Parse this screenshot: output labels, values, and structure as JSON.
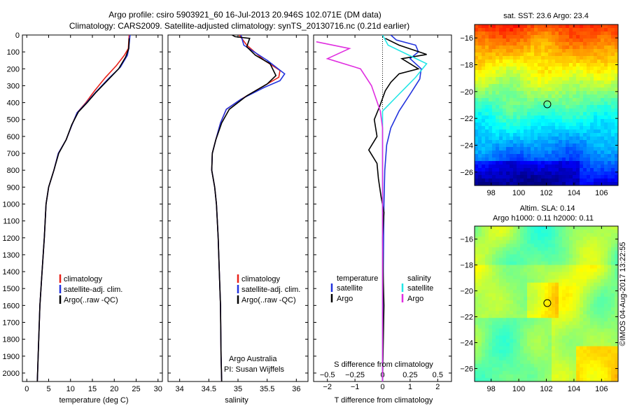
{
  "header": {
    "line1": "Argo profile: csiro 5903921_60 16-Jul-2013 20.946S 102.071E (DM data)",
    "line2": "Climatology: CARS2009. Satellite-adjusted climatology: synTS_20130716.nc (0.21d earlier)"
  },
  "side_label": "©IMOS 04-Aug-2017 13:22:55",
  "colors": {
    "climatology": "#e8221a",
    "satellite": "#2233dd",
    "argo": "#000000",
    "satellite_s": "#22e6e6",
    "argo_s": "#e02ee0"
  },
  "chart_data": [
    {
      "type": "line",
      "id": "temperature",
      "xlabel": "temperature (deg C)",
      "ylabel": "",
      "xlim": [
        -1,
        31
      ],
      "ylim": [
        2050,
        0
      ],
      "xticks": [
        0,
        5,
        10,
        15,
        20,
        25,
        30
      ],
      "yticks": [
        0,
        100,
        200,
        300,
        400,
        500,
        600,
        700,
        800,
        900,
        1000,
        1100,
        1200,
        1300,
        1400,
        1500,
        1600,
        1700,
        1800,
        1900,
        2000
      ],
      "legend": [
        "climatology",
        "satellite-adj. clim.",
        "Argo(..raw -QC)"
      ],
      "legend_position": "center-right",
      "series": [
        {
          "name": "climatology",
          "color": "#e8221a",
          "points": [
            [
              23.4,
              0
            ],
            [
              23.2,
              80
            ],
            [
              22.3,
              120
            ],
            [
              20.5,
              180
            ],
            [
              18,
              250
            ],
            [
              15.5,
              330
            ],
            [
              13.5,
              400
            ],
            [
              11.5,
              460
            ],
            [
              10.2,
              540
            ],
            [
              9,
              620
            ],
            [
              7.2,
              700
            ],
            [
              6.2,
              800
            ],
            [
              5,
              900
            ],
            [
              4.4,
              1000
            ],
            [
              4,
              1200
            ],
            [
              3.5,
              1400
            ],
            [
              3,
              1600
            ],
            [
              2.6,
              1900
            ],
            [
              2.4,
              2050
            ]
          ]
        },
        {
          "name": "satellite-adj. clim.",
          "color": "#2233dd",
          "points": [
            [
              23.6,
              0
            ],
            [
              23.3,
              80
            ],
            [
              23,
              120
            ],
            [
              21.4,
              190
            ],
            [
              18.6,
              260
            ],
            [
              15.7,
              340
            ],
            [
              13.5,
              405
            ],
            [
              11.5,
              460
            ],
            [
              10.2,
              540
            ],
            [
              9,
              620
            ],
            [
              7.2,
              700
            ],
            [
              6.2,
              800
            ],
            [
              5,
              900
            ],
            [
              4.4,
              1000
            ],
            [
              4,
              1200
            ],
            [
              3.5,
              1400
            ],
            [
              3,
              1600
            ],
            [
              2.6,
              1900
            ],
            [
              2.4,
              2050
            ]
          ]
        },
        {
          "name": "Argo(..raw -QC)",
          "color": "#000000",
          "points": [
            [
              23.4,
              20
            ],
            [
              23.3,
              80
            ],
            [
              22.6,
              130
            ],
            [
              21,
              200
            ],
            [
              18.4,
              270
            ],
            [
              15.8,
              340
            ],
            [
              13.8,
              400
            ],
            [
              11.8,
              455
            ],
            [
              10.3,
              530
            ],
            [
              9,
              620
            ],
            [
              7.3,
              700
            ],
            [
              6.2,
              800
            ],
            [
              5,
              900
            ],
            [
              4.4,
              1000
            ],
            [
              4,
              1200
            ],
            [
              3.5,
              1400
            ],
            [
              3,
              1600
            ],
            [
              2.6,
              1900
            ],
            [
              2.4,
              2050
            ]
          ]
        }
      ]
    },
    {
      "type": "line",
      "id": "salinity",
      "xlabel": "salinity",
      "ylabel": "",
      "xlim": [
        33.8,
        36.2
      ],
      "ylim": [
        2050,
        0
      ],
      "xticks": [
        34,
        34.5,
        35,
        35.5,
        36
      ],
      "legend": [
        "climatology",
        "satellite-adj. clim.",
        "Argo(..raw -QC)"
      ],
      "legend_position": "center-right",
      "annotations": [
        "Argo Australia",
        "PI: Susan Wijffels"
      ],
      "series": [
        {
          "name": "climatology",
          "color": "#e8221a",
          "points": [
            [
              35.02,
              0
            ],
            [
              35.15,
              60
            ],
            [
              35.45,
              150
            ],
            [
              35.72,
              210
            ],
            [
              35.7,
              250
            ],
            [
              35.45,
              300
            ],
            [
              35.05,
              380
            ],
            [
              34.8,
              440
            ],
            [
              34.7,
              520
            ],
            [
              34.62,
              620
            ],
            [
              34.56,
              700
            ],
            [
              34.55,
              800
            ],
            [
              34.6,
              900
            ],
            [
              34.63,
              1000
            ],
            [
              34.66,
              1200
            ],
            [
              34.68,
              1400
            ],
            [
              34.7,
              1600
            ],
            [
              34.71,
              1900
            ],
            [
              34.72,
              2050
            ]
          ]
        },
        {
          "name": "satellite-adj. clim.",
          "color": "#2233dd",
          "points": [
            [
              35.05,
              0
            ],
            [
              35.1,
              60
            ],
            [
              35.5,
              150
            ],
            [
              35.8,
              230
            ],
            [
              35.72,
              270
            ],
            [
              35.45,
              310
            ],
            [
              35.05,
              380
            ],
            [
              34.8,
              440
            ],
            [
              34.7,
              520
            ],
            [
              34.62,
              620
            ],
            [
              34.56,
              700
            ],
            [
              34.55,
              800
            ],
            [
              34.6,
              900
            ],
            [
              34.63,
              1000
            ],
            [
              34.66,
              1200
            ],
            [
              34.68,
              1400
            ],
            [
              34.7,
              1600
            ],
            [
              34.71,
              1900
            ],
            [
              34.72,
              2050
            ]
          ]
        },
        {
          "name": "Argo(..raw -QC)",
          "color": "#000000",
          "points": [
            [
              34.9,
              0
            ],
            [
              34.95,
              10
            ],
            [
              35.2,
              20
            ],
            [
              35.15,
              70
            ],
            [
              35.3,
              120
            ],
            [
              35.55,
              170
            ],
            [
              35.65,
              240
            ],
            [
              35.5,
              290
            ],
            [
              35.15,
              360
            ],
            [
              34.85,
              440
            ],
            [
              34.72,
              520
            ],
            [
              34.62,
              620
            ],
            [
              34.56,
              700
            ],
            [
              34.55,
              800
            ],
            [
              34.6,
              900
            ],
            [
              34.63,
              1000
            ],
            [
              34.66,
              1200
            ],
            [
              34.68,
              1400
            ],
            [
              34.7,
              1600
            ],
            [
              34.71,
              1900
            ],
            [
              34.72,
              2050
            ]
          ]
        }
      ]
    },
    {
      "type": "line",
      "id": "difference",
      "xlabel": "T difference from climatology",
      "xlabel_top": "S difference from climatology",
      "xlim": [
        -2.5,
        2.5
      ],
      "ylim": [
        2050,
        0
      ],
      "xticks": [
        -2,
        -1,
        0,
        1,
        2
      ],
      "xticks_s": [
        -0.5,
        -0.25,
        0,
        0.25,
        0.5
      ],
      "legend_t_title": "temperature",
      "legend_s_title": "salinity",
      "legend_t": [
        "satellite",
        "Argo"
      ],
      "legend_s": [
        "satellite",
        "Argo"
      ],
      "series": [
        {
          "name": "satellite",
          "group": "temperature",
          "color": "#2233dd",
          "points": [
            [
              0.3,
              0
            ],
            [
              0.5,
              30
            ],
            [
              1.2,
              60
            ],
            [
              1.3,
              100
            ],
            [
              1.0,
              140
            ],
            [
              1.4,
              200
            ],
            [
              1.35,
              260
            ],
            [
              1.0,
              350
            ],
            [
              0.6,
              450
            ],
            [
              0.3,
              550
            ],
            [
              0.15,
              650
            ],
            [
              0.08,
              800
            ],
            [
              0.05,
              1000
            ],
            [
              0.02,
              1500
            ],
            [
              0.0,
              2050
            ]
          ]
        },
        {
          "name": "Argo",
          "group": "temperature",
          "color": "#000000",
          "points": [
            [
              0.1,
              20
            ],
            [
              0.6,
              60
            ],
            [
              1.6,
              115
            ],
            [
              0.7,
              140
            ],
            [
              1.3,
              200
            ],
            [
              0.6,
              230
            ],
            [
              0.3,
              280
            ],
            [
              0.1,
              330
            ],
            [
              -0.1,
              420
            ],
            [
              -0.3,
              500
            ],
            [
              -0.2,
              600
            ],
            [
              -0.5,
              680
            ],
            [
              -0.2,
              760
            ],
            [
              -0.15,
              850
            ],
            [
              -0.05,
              960
            ],
            [
              0.05,
              1050
            ],
            [
              0.0,
              1200
            ],
            [
              0.02,
              1400
            ],
            [
              0.05,
              1600
            ],
            [
              0.0,
              2050
            ]
          ]
        },
        {
          "name": "satellite",
          "group": "salinity",
          "color": "#22e6e6",
          "points": [
            [
              0.0,
              0
            ],
            [
              0.05,
              60
            ],
            [
              0.4,
              170
            ],
            [
              0.3,
              250
            ],
            [
              0.15,
              350
            ],
            [
              0.0,
              450
            ],
            [
              0.0,
              2050
            ]
          ]
        },
        {
          "name": "Argo",
          "group": "salinity",
          "color": "#e02ee0",
          "points": [
            [
              -0.6,
              40
            ],
            [
              -0.3,
              80
            ],
            [
              -0.5,
              140
            ],
            [
              -0.2,
              200
            ],
            [
              -0.1,
              300
            ],
            [
              -0.02,
              450
            ],
            [
              0.0,
              550
            ],
            [
              0.0,
              2050
            ]
          ]
        }
      ]
    },
    {
      "type": "heatmap",
      "id": "sst_map",
      "title": "sat. SST: 23.6  Argo: 23.4",
      "xlim": [
        96.8,
        107.2
      ],
      "ylim": [
        -27,
        -15
      ],
      "xticks": [
        98,
        100,
        102,
        104,
        106
      ],
      "yticks": [
        -16,
        -18,
        -20,
        -22,
        -24,
        -26
      ],
      "marker": {
        "lon": 102.071,
        "lat": -20.946
      }
    },
    {
      "type": "heatmap",
      "id": "sla_map",
      "title": "Altim. SLA: 0.14",
      "subtitle": "Argo h1000: 0.11  h2000: 0.11",
      "xlim": [
        96.8,
        107.2
      ],
      "ylim": [
        -27,
        -15
      ],
      "xticks": [
        98,
        100,
        102,
        104,
        106
      ],
      "yticks": [
        -16,
        -18,
        -20,
        -22,
        -24,
        -26
      ],
      "marker": {
        "lon": 102.071,
        "lat": -20.946
      }
    }
  ]
}
